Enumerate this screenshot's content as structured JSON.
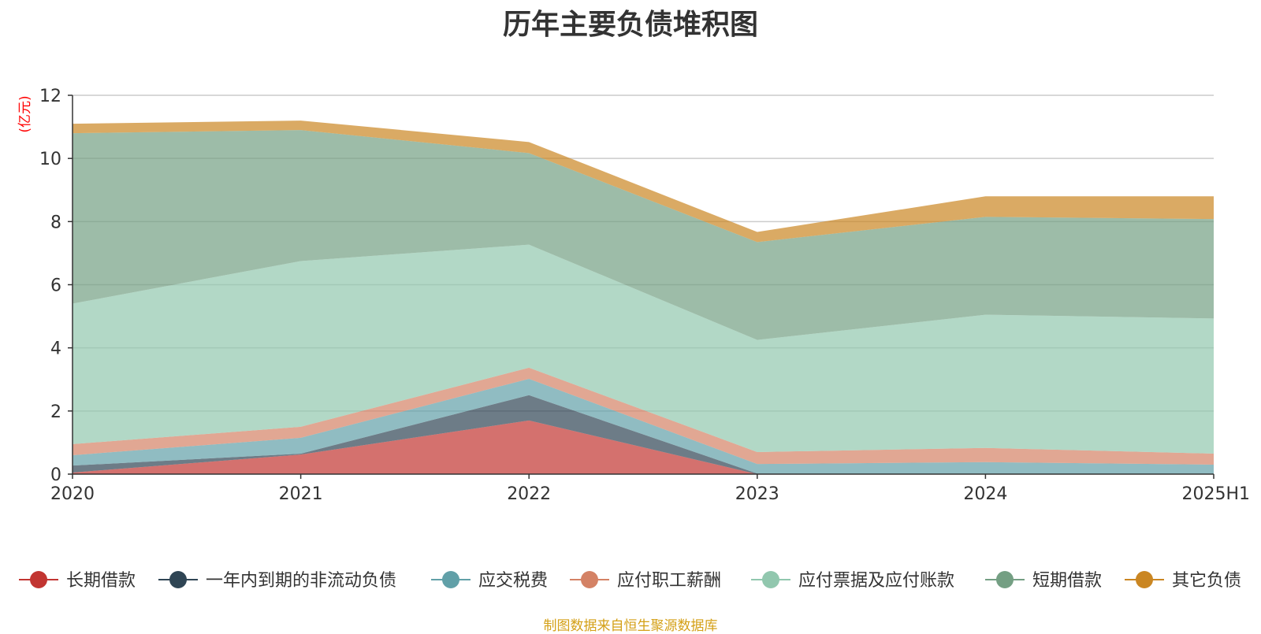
{
  "chart_data": {
    "type": "area",
    "title": "历年主要负债堆积图",
    "unit_label": "(亿元)",
    "x": [
      "2020",
      "2021",
      "2022",
      "2023",
      "2024",
      "2025H1"
    ],
    "ylim": [
      0,
      12
    ],
    "yticks": [
      0,
      2,
      4,
      6,
      8,
      10,
      12
    ],
    "stacked": true,
    "grid": true,
    "legend_position": "bottom",
    "series": [
      {
        "name": "长期借款",
        "color": "#c23531",
        "values": [
          0.05,
          0.62,
          1.7,
          0.0,
          0.0,
          0.0
        ]
      },
      {
        "name": "一年内到期的非流动负债",
        "color": "#2f4554",
        "values": [
          0.22,
          0.03,
          0.8,
          0.02,
          0.0,
          0.0
        ]
      },
      {
        "name": "应交税费",
        "color": "#61a0a8",
        "values": [
          0.33,
          0.5,
          0.52,
          0.3,
          0.38,
          0.3
        ]
      },
      {
        "name": "应付职工薪酬",
        "color": "#d48265",
        "values": [
          0.35,
          0.35,
          0.35,
          0.38,
          0.45,
          0.35
        ]
      },
      {
        "name": "应付票据及应付账款",
        "color": "#91c7ae",
        "values": [
          4.45,
          5.25,
          3.9,
          3.55,
          4.22,
          4.28
        ]
      },
      {
        "name": "短期借款",
        "color": "#749f83",
        "values": [
          5.4,
          4.15,
          2.9,
          3.1,
          3.1,
          3.15
        ]
      },
      {
        "name": "其它负债",
        "color": "#ca8622",
        "values": [
          0.3,
          0.3,
          0.35,
          0.32,
          0.65,
          0.72
        ]
      }
    ]
  },
  "footer": {
    "source": "制图数据来自恒生聚源数据库"
  }
}
